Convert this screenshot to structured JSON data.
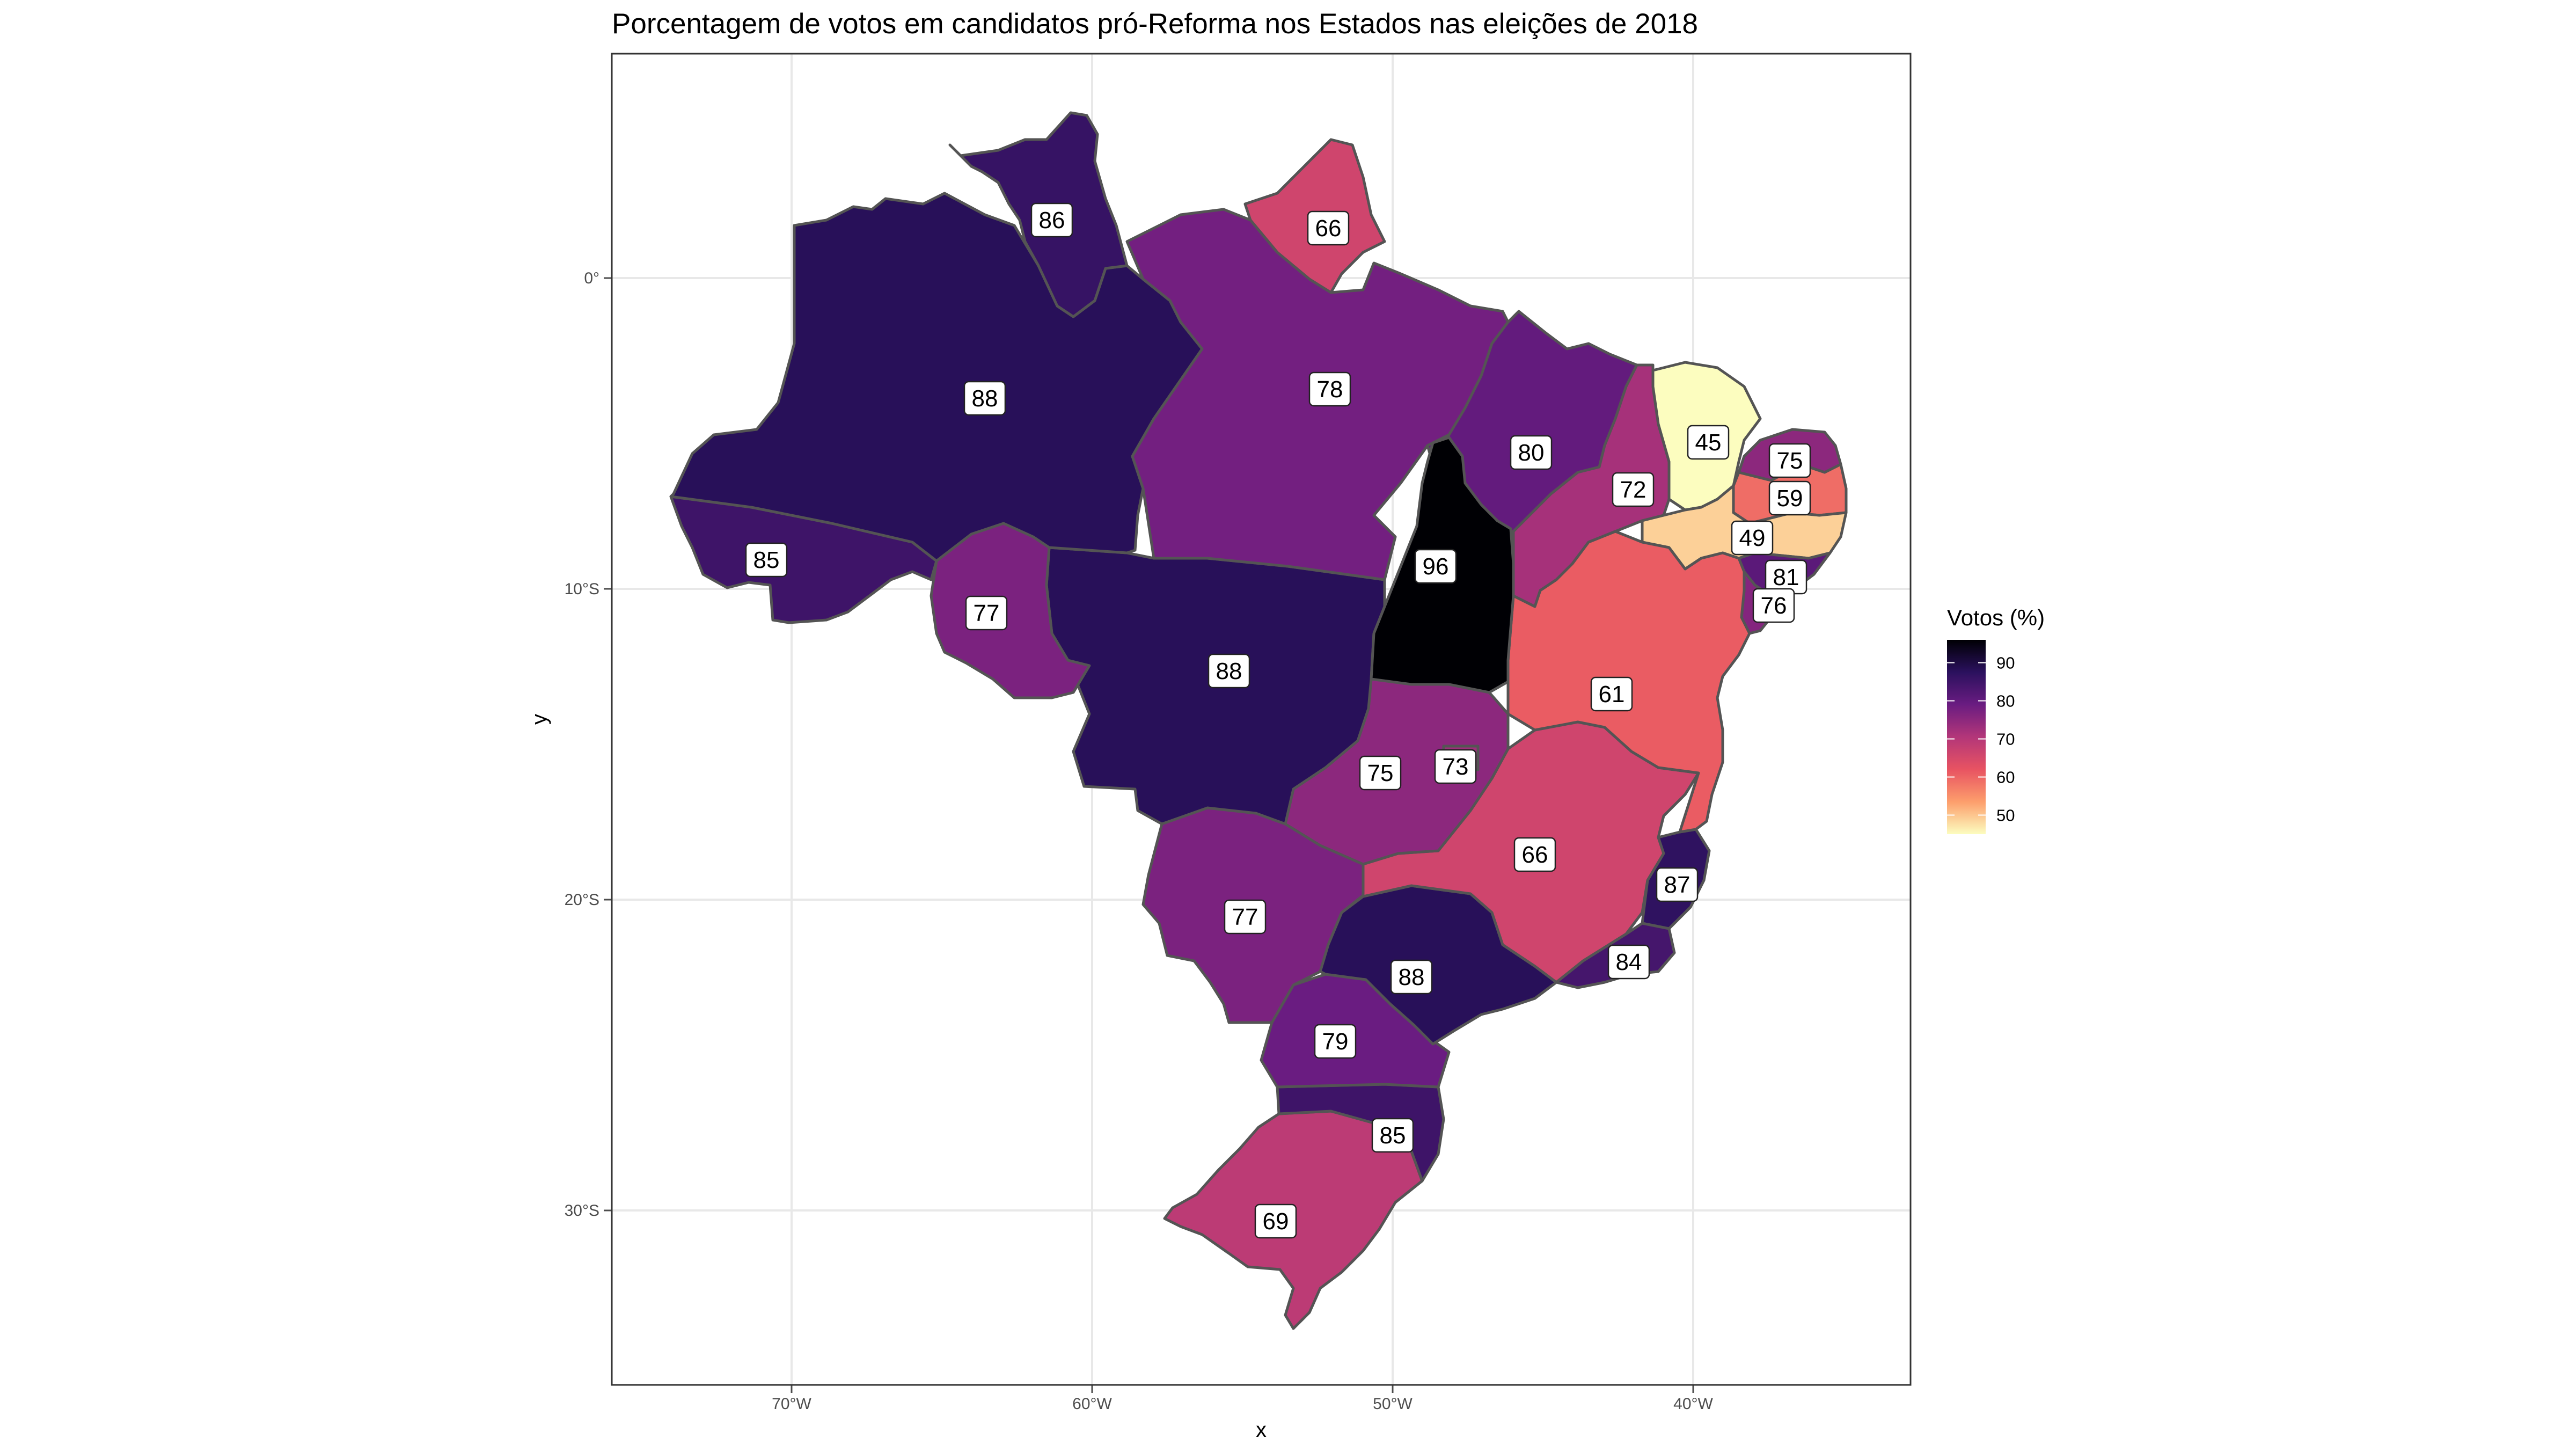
{
  "chart_data": {
    "type": "choropleth",
    "title": "Porcentagem de votos em candidatos pró-Reforma nos Estados nas eleições de 2018",
    "xlabel": "x",
    "ylabel": "y",
    "x_ticks": [
      "70°W",
      "60°W",
      "50°W",
      "40°W"
    ],
    "y_ticks": [
      "0°",
      "10°S",
      "20°S",
      "30°S"
    ],
    "grid": true,
    "legend": {
      "title": "Votos (%)",
      "position": "right",
      "ticks": [
        "90",
        "80",
        "70",
        "60",
        "50"
      ],
      "range": [
        45,
        96
      ],
      "palette": [
        "#000004",
        "#2b115e",
        "#6a1c81",
        "#b33679",
        "#e85362",
        "#fd9e6c",
        "#fcfdbf"
      ]
    },
    "states": [
      {
        "id": "RR",
        "value": 86
      },
      {
        "id": "AP",
        "value": 66
      },
      {
        "id": "AM",
        "value": 88
      },
      {
        "id": "PA",
        "value": 78
      },
      {
        "id": "MA",
        "value": 80
      },
      {
        "id": "PI",
        "value": 72
      },
      {
        "id": "CE",
        "value": 45
      },
      {
        "id": "RN",
        "value": 75
      },
      {
        "id": "PB",
        "value": 59
      },
      {
        "id": "PE",
        "value": 49
      },
      {
        "id": "AL",
        "value": 81
      },
      {
        "id": "SE",
        "value": 76
      },
      {
        "id": "AC",
        "value": 85
      },
      {
        "id": "RO",
        "value": 77
      },
      {
        "id": "TO",
        "value": 96
      },
      {
        "id": "MT",
        "value": 88
      },
      {
        "id": "BA",
        "value": 61
      },
      {
        "id": "GO",
        "value": 75
      },
      {
        "id": "DF",
        "value": 73
      },
      {
        "id": "MG",
        "value": 66
      },
      {
        "id": "ES",
        "value": 87
      },
      {
        "id": "MS",
        "value": 77
      },
      {
        "id": "RJ",
        "value": 84
      },
      {
        "id": "SP",
        "value": 88
      },
      {
        "id": "PR",
        "value": 79
      },
      {
        "id": "SC",
        "value": 85
      },
      {
        "id": "RS",
        "value": 69
      }
    ]
  }
}
